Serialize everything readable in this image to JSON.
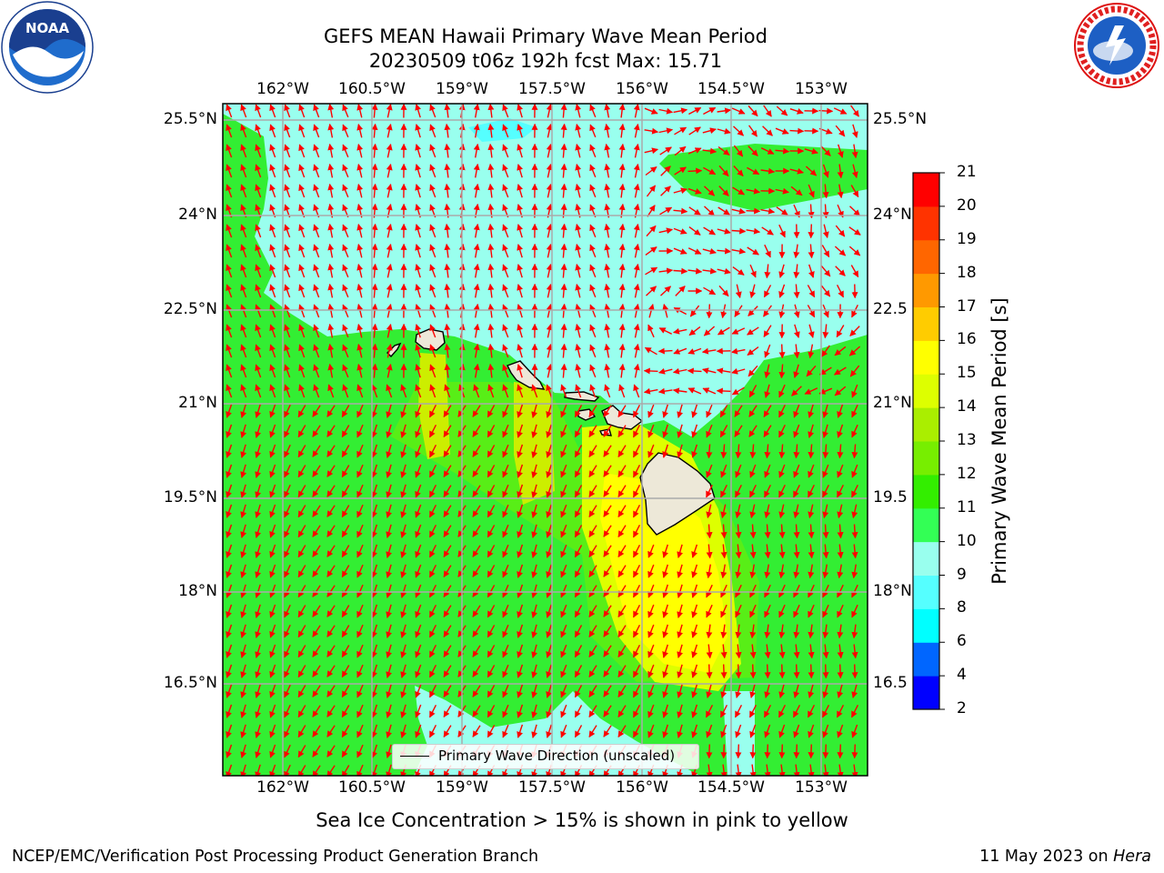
{
  "title": {
    "line1": "GEFS MEAN Hawaii Primary Wave Mean Period",
    "line2": "20230509 t06z 192h fcst   Max: 15.71"
  },
  "map": {
    "lon_labels": [
      "162°W",
      "160.5°W",
      "159°W",
      "157.5°W",
      "156°W",
      "154.5°W",
      "153°W"
    ],
    "lat_labels_left": [
      "25.5°N",
      "24°N",
      "22.5°N",
      "21°N",
      "19.5°N",
      "18°N",
      "16.5°N"
    ],
    "lat_labels_right": [
      "25.5°N",
      "24°N",
      "22.5",
      "21°N",
      "19.5",
      "18°N",
      "16.5"
    ],
    "legend_label": "Primary Wave Direction (unscaled)",
    "arrow_color": "#ff0000",
    "land_color": "#ede8d8"
  },
  "colorbar": {
    "label": "Primary Wave Mean Period [s]",
    "ticks": [
      "2",
      "4",
      "6",
      "8",
      "9",
      "10",
      "11",
      "12",
      "13",
      "14",
      "15",
      "16",
      "17",
      "18",
      "19",
      "20",
      "21"
    ],
    "colors": [
      "#0000ff",
      "#0066ff",
      "#00ffff",
      "#55ffff",
      "#99ffee",
      "#33ff55",
      "#33ee00",
      "#77ee00",
      "#aaee00",
      "#ddff00",
      "#ffff00",
      "#ffcc00",
      "#ff9900",
      "#ff6600",
      "#ff3300",
      "#ff0000"
    ]
  },
  "caption": "Sea Ice Concentration > 15% is shown in pink to yellow",
  "footer": {
    "left": "NCEP/EMC/Verification Post Processing Product Generation Branch",
    "right_date": "11 May 2023 on ",
    "right_host": "Hera"
  },
  "logos": {
    "noaa_text": "NOAA",
    "nws_text": "NATIONAL WEATHER SERVICE"
  }
}
